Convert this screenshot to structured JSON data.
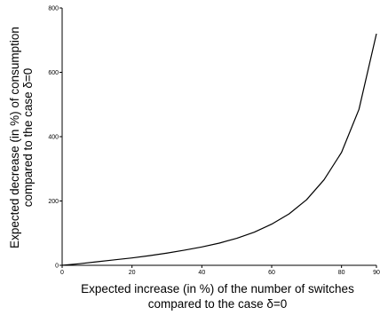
{
  "chart_data": {
    "type": "line",
    "title": "",
    "xlabel_lines": [
      "Expected increase (in %) of the number of switches",
      "compared to the case δ=0"
    ],
    "ylabel_lines": [
      "Expected decrease (in %) of consumption",
      "compared to the case δ=0"
    ],
    "xlim": [
      0,
      90
    ],
    "ylim": [
      0,
      800
    ],
    "xticks": [
      0,
      20,
      40,
      60,
      80,
      90
    ],
    "yticks": [
      0,
      200,
      400,
      600,
      800
    ],
    "grid": false,
    "series": [
      {
        "x": [
          0,
          5,
          10,
          15,
          20,
          25,
          30,
          35,
          40,
          45,
          50,
          55,
          60,
          65,
          70,
          75,
          80,
          85,
          90
        ],
        "y": [
          0,
          5,
          11,
          17,
          23,
          30,
          38,
          47,
          57,
          69,
          84,
          103,
          128,
          160,
          204,
          266,
          351,
          485,
          720
        ],
        "color": "#000000"
      }
    ]
  }
}
